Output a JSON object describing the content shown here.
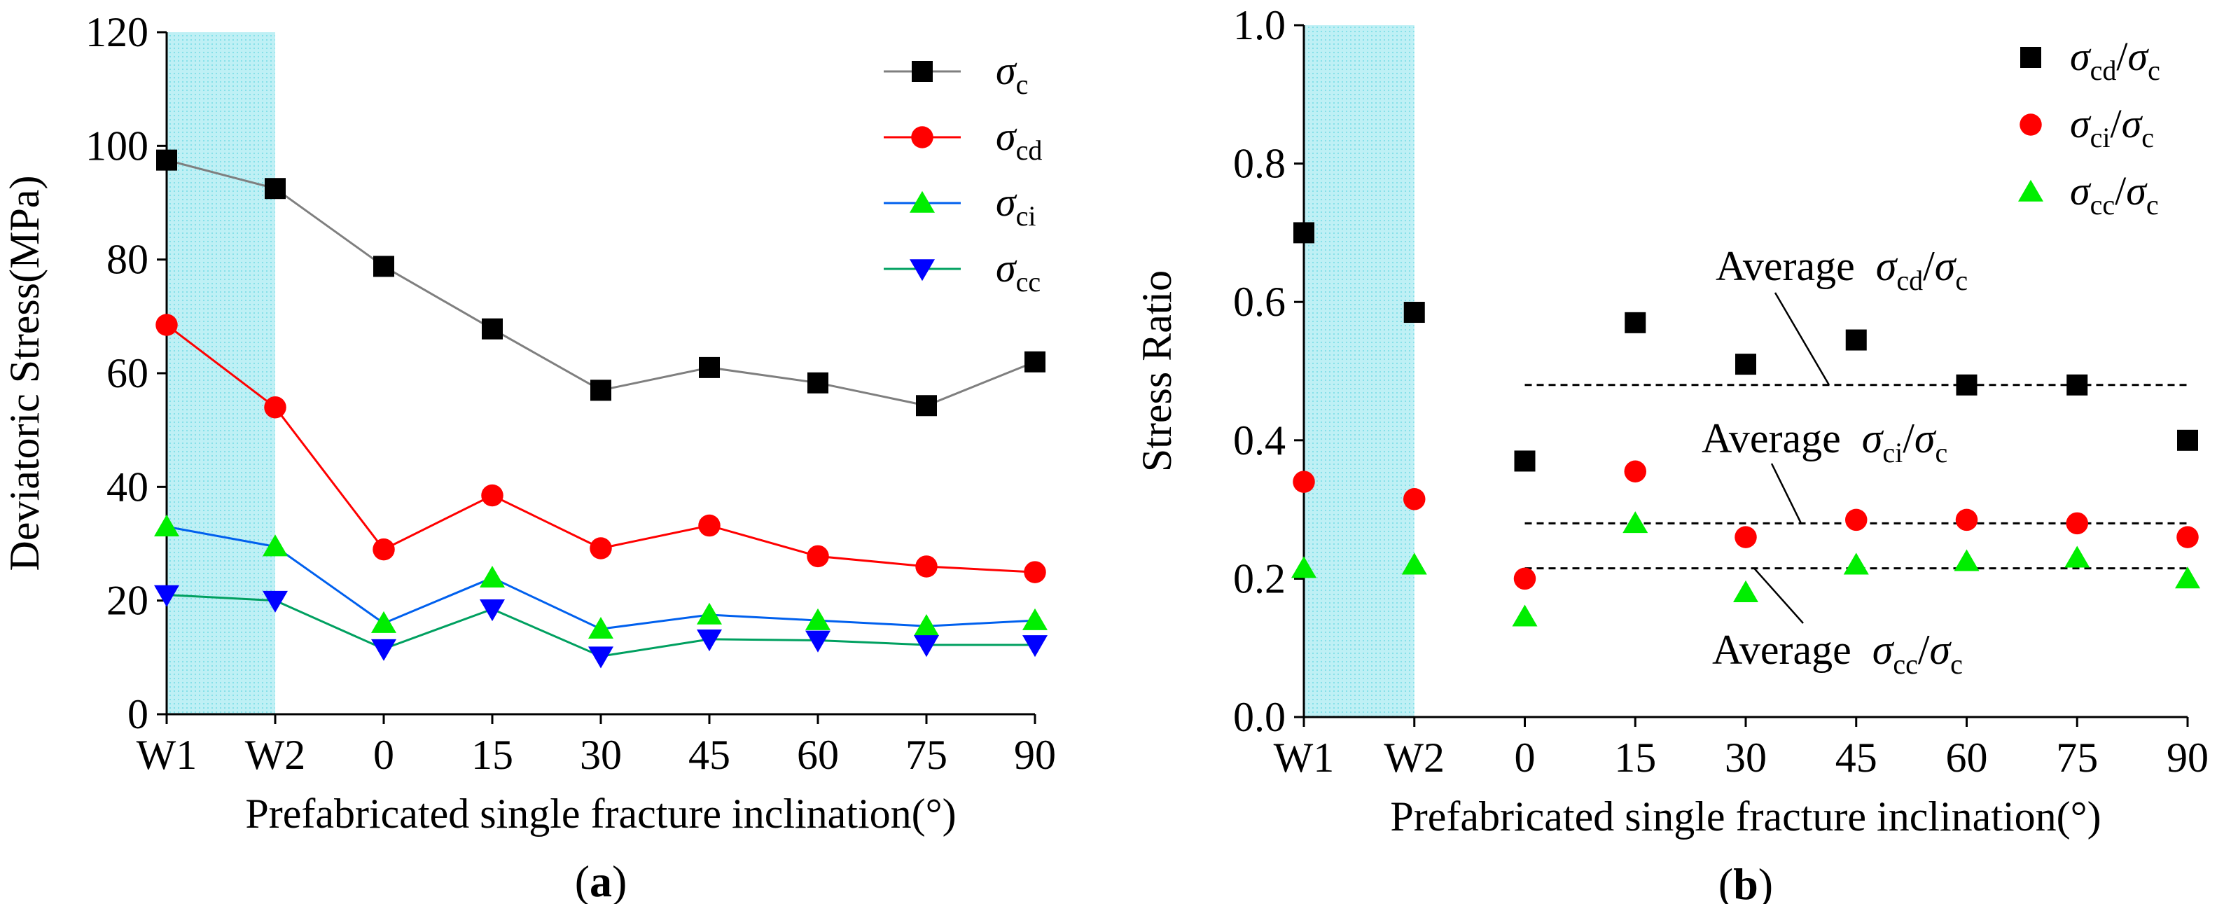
{
  "chart_data": [
    {
      "panel_label_open": "(",
      "panel_label": "a",
      "panel_label_close": ")",
      "type": "line",
      "title": "",
      "xlabel": "Prefabricated single fracture inclination(°)",
      "ylabel": "Deviatoric Stress(MPa)",
      "categories": [
        "W1",
        "W2",
        "0",
        "15",
        "30",
        "45",
        "60",
        "75",
        "90"
      ],
      "ylim": [
        0,
        120
      ],
      "yticks": [
        0,
        20,
        40,
        60,
        80,
        100,
        120
      ],
      "shaded_categories": [
        "W1",
        "W2"
      ],
      "shade_color": "#bff0f5",
      "legend_position": "top-right",
      "series": [
        {
          "name": "σc",
          "sym": "σ",
          "sub": "c",
          "marker": "square",
          "color": "#000000",
          "line_color": "#7f7f7f",
          "values": [
            97.5,
            92.5,
            78.8,
            67.8,
            57.0,
            61.0,
            58.3,
            54.3,
            62.0
          ]
        },
        {
          "name": "σcd",
          "sym": "σ",
          "sub": "cd",
          "marker": "circle",
          "color": "#ff0000",
          "line_color": "#ff0000",
          "values": [
            68.5,
            54.0,
            29.0,
            38.5,
            29.2,
            33.2,
            27.8,
            26.0,
            25.0
          ]
        },
        {
          "name": "σci",
          "sym": "σ",
          "sub": "ci",
          "marker": "triangle-up",
          "color": "#00ee00",
          "line_color": "#0060ee",
          "values": [
            33.0,
            29.5,
            16.0,
            24.0,
            15.0,
            17.5,
            16.5,
            15.5,
            16.5
          ]
        },
        {
          "name": "σcc",
          "sym": "σ",
          "sub": "cc",
          "marker": "triangle-down",
          "color": "#0000ff",
          "line_color": "#00a060",
          "values": [
            21.0,
            20.0,
            11.5,
            18.5,
            10.2,
            13.2,
            13.0,
            12.2,
            12.2
          ]
        }
      ]
    },
    {
      "panel_label_open": "(",
      "panel_label": "b",
      "panel_label_close": ")",
      "type": "scatter",
      "title": "",
      "xlabel": "Prefabricated single fracture inclination(°)",
      "ylabel": "Stress Ratio",
      "categories": [
        "W1",
        "W2",
        "0",
        "15",
        "30",
        "45",
        "60",
        "75",
        "90"
      ],
      "ylim": [
        0.0,
        1.0
      ],
      "yticks": [
        "0.0",
        "0.2",
        "0.4",
        "0.6",
        "0.8",
        "1.0"
      ],
      "shaded_categories": [
        "W1",
        "W2"
      ],
      "shade_color": "#bff0f5",
      "legend_position": "top-right",
      "series": [
        {
          "name": "σcd/σc",
          "num_sub": "cd",
          "den_sub": "c",
          "marker": "square",
          "color": "#000000",
          "values": [
            0.7,
            0.585,
            0.37,
            0.57,
            0.51,
            0.545,
            0.48,
            0.48,
            0.4
          ]
        },
        {
          "name": "σci/σc",
          "num_sub": "ci",
          "den_sub": "c",
          "marker": "circle",
          "color": "#ff0000",
          "values": [
            0.34,
            0.315,
            0.2,
            0.355,
            0.26,
            0.285,
            0.285,
            0.28,
            0.26
          ]
        },
        {
          "name": "σcc/σc",
          "num_sub": "cc",
          "den_sub": "c",
          "marker": "triangle-up",
          "color": "#00ee00",
          "values": [
            0.215,
            0.22,
            0.145,
            0.28,
            0.18,
            0.22,
            0.225,
            0.23,
            0.2
          ]
        }
      ],
      "reference_lines": [
        {
          "label_prefix": "Average",
          "num_sub": "cd",
          "den_sub": "c",
          "value": 0.48
        },
        {
          "label_prefix": "Average",
          "num_sub": "ci",
          "den_sub": "c",
          "value": 0.28
        },
        {
          "label_prefix": "Average",
          "num_sub": "cc",
          "den_sub": "c",
          "value": 0.215
        }
      ]
    }
  ]
}
